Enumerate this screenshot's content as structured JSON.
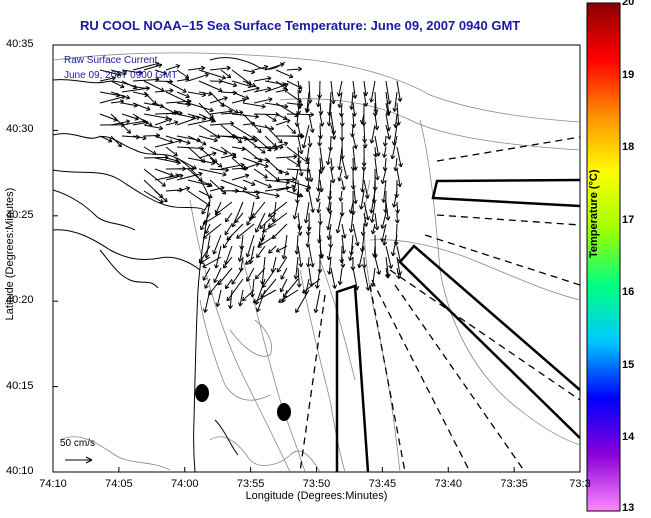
{
  "title": "RU COOL  NOAA–15  Sea Surface Temperature:  June 09, 2007 0940 GMT",
  "map_notes": {
    "line1": "Raw Surface Current",
    "line2": "June 09, 2007 0900 GMT"
  },
  "axes": {
    "xlabel": "Longitude (Degrees:Minutes)",
    "ylabel": "Latitude (Degrees:Minutes)",
    "xticks": [
      "74:10",
      "74:05",
      "74:00",
      "73:55",
      "73:50",
      "73:45",
      "73:40",
      "73:35",
      "73:3"
    ],
    "yticks": [
      "40:35",
      "40:30",
      "40:25",
      "40:20",
      "40:15",
      "40:10"
    ]
  },
  "scale_vector": {
    "label": "50 cm/s"
  },
  "colorbar": {
    "title": "Temperature (°C)",
    "ticks": [
      "20",
      "19",
      "18",
      "17",
      "16",
      "15",
      "14",
      "13"
    ],
    "min": 13,
    "max": 20,
    "colors": [
      "#ff88ff",
      "#8a00d8",
      "#0000ff",
      "#00c8ff",
      "#00ff80",
      "#a0ff00",
      "#ffff00",
      "#ff9000",
      "#ff0000",
      "#8a0000"
    ]
  },
  "colors": {
    "title": "#1a1aa0",
    "coast": "#000000",
    "bathymetry": "#888888"
  }
}
